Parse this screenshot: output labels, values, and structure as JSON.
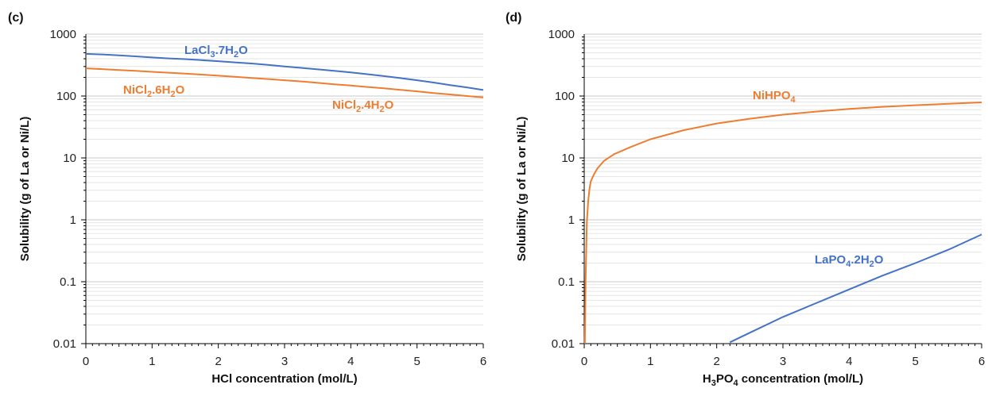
{
  "chart_data": [
    {
      "type": "line",
      "panel_label": "(c)",
      "xlabel": "HCl concentration (mol/L)",
      "ylabel": "Solubility (g of La or Ni/L)",
      "xlim": [
        0,
        6
      ],
      "ylim": [
        0.01,
        1000
      ],
      "yscale": "log",
      "x_ticks": [
        "0",
        "1",
        "2",
        "3",
        "4",
        "5",
        "6"
      ],
      "y_ticks": [
        "0.01",
        "0.1",
        "1",
        "10",
        "100",
        "1000"
      ],
      "grid": "horizontal minor and major",
      "series": [
        {
          "name_parts": [
            "LaCl",
            "3",
            ".7H",
            "2",
            "O"
          ],
          "color": "#4472c4",
          "x": [
            0,
            0.25,
            0.5,
            0.75,
            1,
            1.25,
            1.5,
            1.75,
            2,
            2.25,
            2.5,
            2.75,
            3,
            3.25,
            3.5,
            3.75,
            4,
            4.25,
            4.5,
            4.75,
            5,
            5.25,
            5.5,
            5.75,
            6
          ],
          "y": [
            480,
            470,
            455,
            438,
            420,
            405,
            395,
            380,
            365,
            350,
            335,
            318,
            300,
            285,
            270,
            255,
            240,
            225,
            210,
            195,
            180,
            165,
            150,
            138,
            125
          ]
        },
        {
          "name_parts": [
            "NiCl",
            "2",
            ".6H",
            "2",
            "O"
          ],
          "color": "#ed7d31",
          "x": [
            0,
            0.25,
            0.5,
            0.75,
            1,
            1.25,
            1.5,
            1.75,
            2,
            2.25,
            2.5,
            2.75,
            3,
            3.25,
            3.5,
            3.75,
            4,
            4.25,
            4.5,
            4.75,
            5,
            5.25,
            5.5,
            5.75,
            6
          ],
          "y": [
            280,
            272,
            263,
            255,
            246,
            238,
            230,
            222,
            213,
            205,
            196,
            188,
            180,
            172,
            163,
            155,
            148,
            140,
            133,
            126,
            119,
            112,
            106,
            100,
            95
          ]
        }
      ],
      "extra_labels": [
        {
          "name_parts": [
            "NiCl",
            "2",
            ".4H",
            "2",
            "O"
          ],
          "color": "#ed7d31"
        }
      ]
    },
    {
      "type": "line",
      "panel_label": "(d)",
      "xlabel_parts": [
        "H",
        "3",
        "PO",
        "4",
        " concentration (mol/L)"
      ],
      "ylabel": "Solubility (g of La or Ni/L)",
      "xlim": [
        0,
        6
      ],
      "ylim": [
        0.01,
        1000
      ],
      "yscale": "log",
      "x_ticks": [
        "0",
        "1",
        "2",
        "3",
        "4",
        "5",
        "6"
      ],
      "y_ticks": [
        "0.01",
        "0.1",
        "1",
        "10",
        "100",
        "1000"
      ],
      "grid": "horizontal minor and major",
      "series": [
        {
          "name_parts": [
            "NiHPO",
            "4"
          ],
          "color": "#ed7d31",
          "x": [
            0.01,
            0.02,
            0.04,
            0.06,
            0.08,
            0.1,
            0.15,
            0.2,
            0.3,
            0.45,
            0.7,
            1,
            1.5,
            2,
            2.5,
            3,
            3.5,
            4,
            4.5,
            5,
            5.5,
            6
          ],
          "y": [
            0.01,
            0.1,
            0.9,
            2,
            3.2,
            4.2,
            5.5,
            6.8,
            9,
            11.5,
            15,
            20,
            28,
            36,
            43,
            50,
            56,
            62,
            67,
            71,
            75,
            79
          ]
        },
        {
          "name_parts": [
            "LaPO",
            "4",
            ".2H",
            "2",
            "O"
          ],
          "color": "#4472c4",
          "x": [
            2.2,
            2.5,
            3,
            3.5,
            4,
            4.5,
            5,
            5.5,
            6
          ],
          "y": [
            0.0105,
            0.015,
            0.027,
            0.045,
            0.075,
            0.125,
            0.2,
            0.33,
            0.58
          ]
        }
      ]
    }
  ]
}
